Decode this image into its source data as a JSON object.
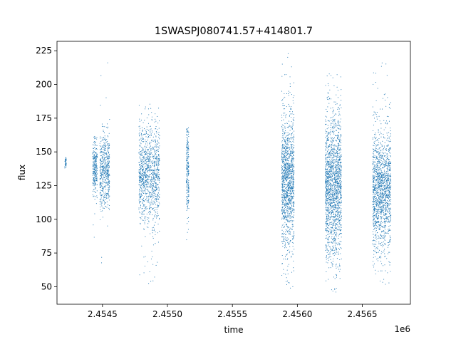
{
  "chart_data": {
    "type": "scatter",
    "title": "1SWASPJ080741.57+414801.7",
    "xlabel": "time",
    "ylabel": "flux",
    "x_offset_label": "1e6",
    "x_tick_labels": [
      "2.4545",
      "2.4550",
      "2.4555",
      "2.4560",
      "2.4565"
    ],
    "x_ticks": [
      2454500,
      2455000,
      2455500,
      2456000,
      2456500
    ],
    "y_ticks": [
      50,
      75,
      100,
      125,
      150,
      175,
      200,
      225
    ],
    "y_tick_labels": [
      "50",
      "75",
      "100",
      "125",
      "150",
      "175",
      "200",
      "225"
    ],
    "xlim": [
      2454150,
      2456870
    ],
    "ylim": [
      37,
      232
    ],
    "grid": false,
    "marker_color": "#1f77b4",
    "segments": [
      {
        "x": [
          2454210,
          2454222
        ],
        "center": 142,
        "spread": 4,
        "low": 138,
        "high": 146,
        "n": 40
      },
      {
        "x": [
          2454425,
          2454460
        ],
        "center": 138,
        "spread": 10,
        "low": 78,
        "high": 163,
        "n": 260
      },
      {
        "x": [
          2454480,
          2454555
        ],
        "center": 135,
        "spread": 14,
        "low": 62,
        "high": 220,
        "n": 520
      },
      {
        "x": [
          2454780,
          2454940
        ],
        "center": 133,
        "spread": 18,
        "low": 52,
        "high": 186,
        "n": 1100
      },
      {
        "x": [
          2455145,
          2455165
        ],
        "center": 135,
        "spread": 16,
        "low": 84,
        "high": 168,
        "n": 220
      },
      {
        "x": [
          2455880,
          2455975
        ],
        "center": 128,
        "spread": 24,
        "low": 46,
        "high": 225,
        "n": 1300
      },
      {
        "x": [
          2456215,
          2456340
        ],
        "center": 125,
        "spread": 26,
        "low": 46,
        "high": 210,
        "n": 1700
      },
      {
        "x": [
          2456580,
          2456720
        ],
        "center": 122,
        "spread": 22,
        "low": 49,
        "high": 218,
        "n": 1500
      }
    ]
  }
}
